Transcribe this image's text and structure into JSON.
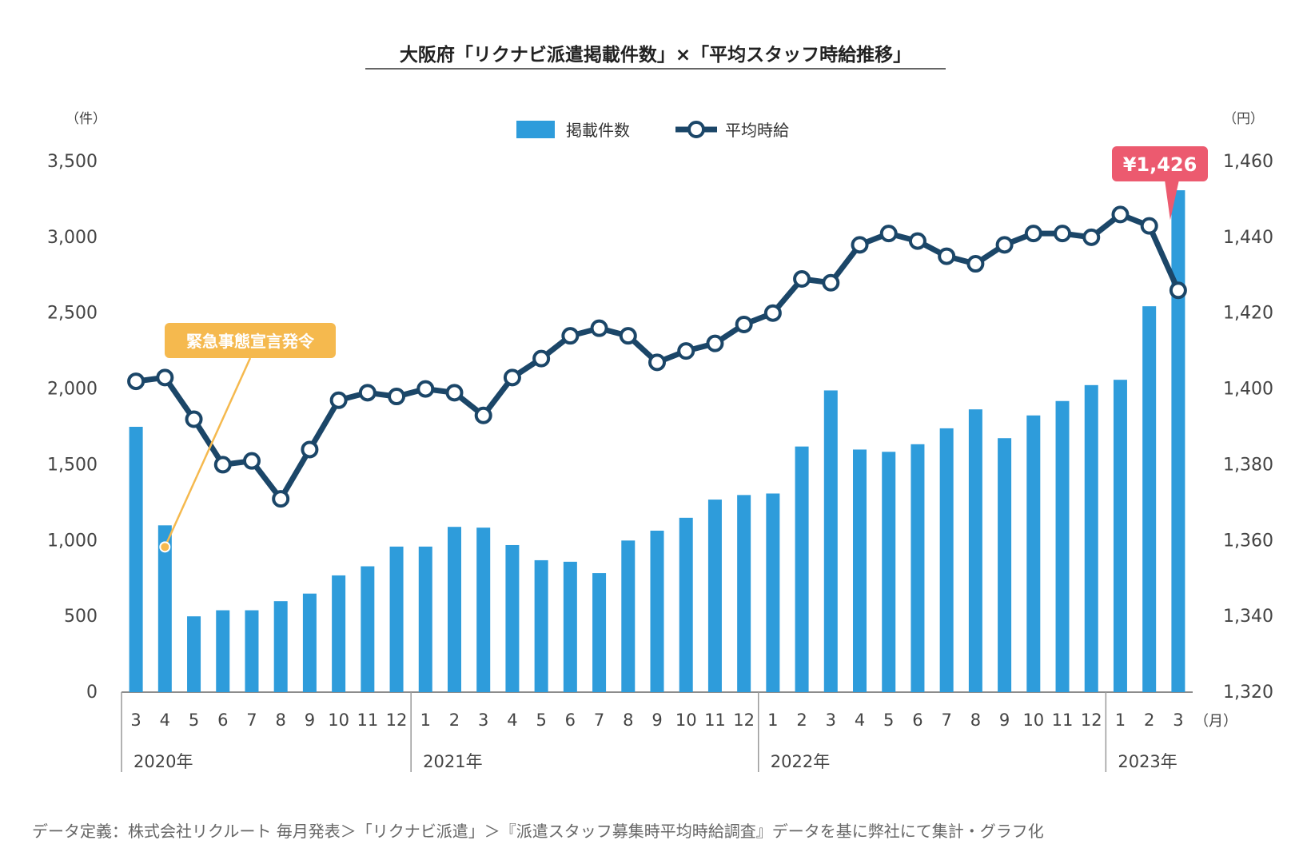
{
  "colors": {
    "bar": "#2e9cdb",
    "line": "#1b4668",
    "marker_fill": "#ffffff",
    "callout_event": "#f5b94e",
    "callout_latest": "#ec5a6f",
    "axis": "#666666",
    "text": "#333333"
  },
  "chart_data": {
    "type": "bar",
    "title": "大阪府「リクナビ派遣掲載件数」×「平均スタッフ時給推移」",
    "y_left_unit": "（件）",
    "y_right_unit": "（円）",
    "x_unit": "（月）",
    "ylim_left": [
      0,
      3500
    ],
    "ylim_right": [
      1320,
      1460
    ],
    "yticks_left": [
      "0",
      "500",
      "1,000",
      "1,500",
      "2,000",
      "2,500",
      "3,000",
      "3,500"
    ],
    "yticks_right": [
      "1,320",
      "1,340",
      "1,360",
      "1,380",
      "1,400",
      "1,420",
      "1,440",
      "1,460"
    ],
    "legend_position": "top-center",
    "grid": false,
    "categories": [
      "3",
      "4",
      "5",
      "6",
      "7",
      "8",
      "9",
      "10",
      "11",
      "12",
      "1",
      "2",
      "3",
      "4",
      "5",
      "6",
      "7",
      "8",
      "9",
      "10",
      "11",
      "12",
      "1",
      "2",
      "3",
      "4",
      "5",
      "6",
      "7",
      "8",
      "9",
      "10",
      "11",
      "12",
      "1",
      "2",
      "3"
    ],
    "year_groups": [
      {
        "label": "2020年",
        "start": 0,
        "count": 10
      },
      {
        "label": "2021年",
        "start": 10,
        "count": 12
      },
      {
        "label": "2022年",
        "start": 22,
        "count": 12
      },
      {
        "label": "2023年",
        "start": 34,
        "count": 3
      }
    ],
    "series": [
      {
        "name": "掲載件数",
        "type": "bar",
        "axis": "left",
        "values": [
          1750,
          1100,
          500,
          540,
          540,
          600,
          650,
          770,
          830,
          960,
          960,
          1090,
          1085,
          970,
          870,
          860,
          785,
          1000,
          1065,
          1150,
          1270,
          1300,
          1310,
          1620,
          1990,
          1600,
          1585,
          1635,
          1740,
          1865,
          1675,
          1825,
          1920,
          2025,
          2060,
          2545,
          3310
        ]
      },
      {
        "name": "平均時給",
        "type": "line",
        "axis": "right",
        "values": [
          1402,
          1403,
          1392,
          1380,
          1381,
          1371,
          1384,
          1397,
          1399,
          1398,
          1400,
          1399,
          1393,
          1403,
          1408,
          1414,
          1416,
          1414,
          1407,
          1410,
          1412,
          1417,
          1420,
          1429,
          1428,
          1438,
          1441,
          1439,
          1435,
          1433,
          1438,
          1441,
          1441,
          1440,
          1446,
          1443,
          1426
        ]
      }
    ],
    "annotations": [
      {
        "text": "緊急事態宣言発令",
        "index": 1
      },
      {
        "text": "¥1,426",
        "index": 36
      }
    ]
  },
  "footer": {
    "note": "データ定義：株式会社リクルート 毎月発表＞「リクナビ派遣」＞『派遣スタッフ募集時平均時給調査』データを基に弊社にて集計・グラフ化"
  }
}
